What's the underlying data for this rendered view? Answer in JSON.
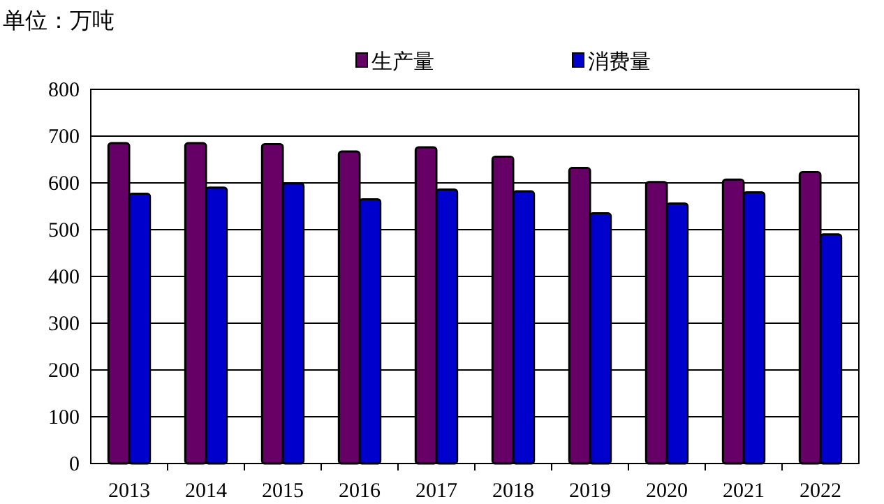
{
  "chart_data": {
    "type": "bar",
    "ylabel": "单位：万吨",
    "categories": [
      "2013",
      "2014",
      "2015",
      "2016",
      "2017",
      "2018",
      "2019",
      "2020",
      "2021",
      "2022"
    ],
    "series": [
      {
        "name": "生产量",
        "color": "#660066",
        "values": [
          685,
          685,
          683,
          667,
          676,
          656,
          632,
          602,
          607,
          623
        ]
      },
      {
        "name": "消费量",
        "color": "#0000cc",
        "values": [
          577,
          590,
          599,
          565,
          586,
          582,
          535,
          556,
          580,
          490
        ]
      }
    ],
    "ylim": [
      0,
      800
    ],
    "yticks": [
      0,
      100,
      200,
      300,
      400,
      500,
      600,
      700,
      800
    ],
    "grid": "y",
    "legend": "top"
  }
}
